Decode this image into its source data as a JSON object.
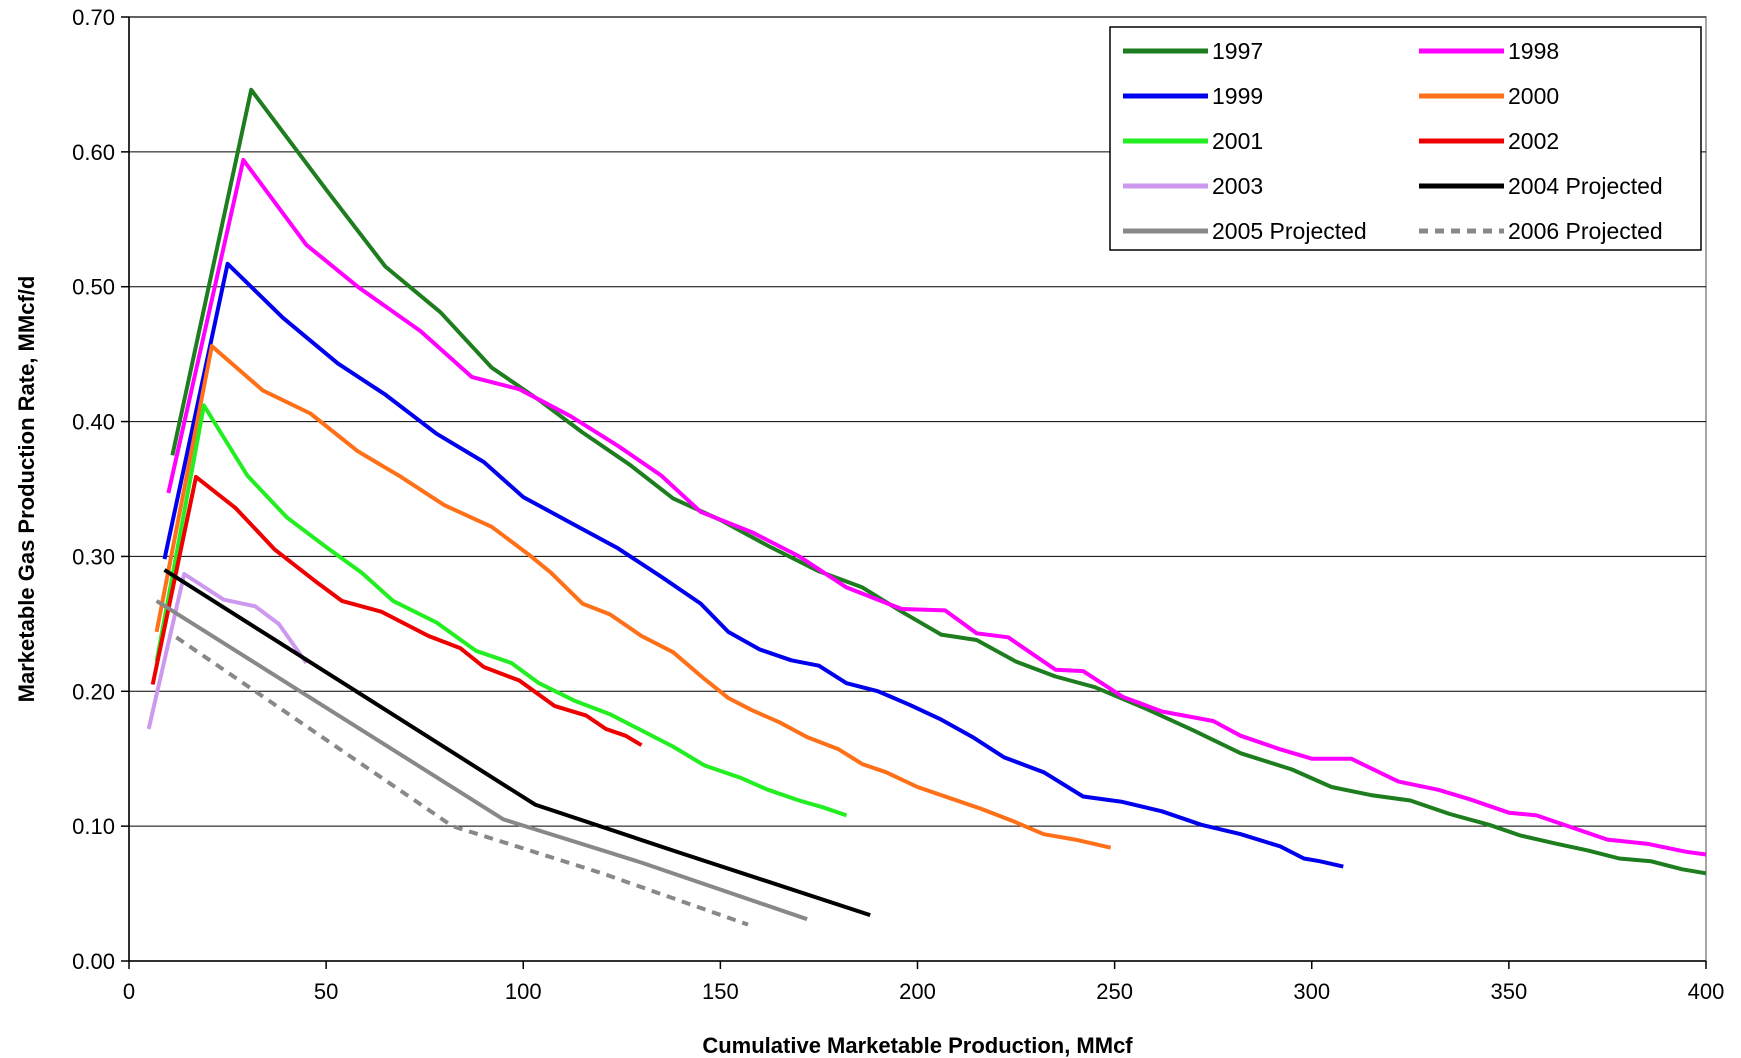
{
  "chart_data": {
    "type": "line",
    "title": "",
    "xlabel": "Cumulative Marketable Production, MMcf",
    "ylabel": "Marketable Gas Production Rate, MMcf/d",
    "xlim": [
      0,
      400
    ],
    "ylim": [
      0,
      0.7
    ],
    "x_ticks": [
      0,
      50,
      100,
      150,
      200,
      250,
      300,
      350,
      400
    ],
    "x_tick_labels": [
      "0",
      "50",
      "100",
      "150",
      "200",
      "250",
      "300",
      "350",
      "400"
    ],
    "y_ticks": [
      0,
      0.1,
      0.2,
      0.3,
      0.4,
      0.5,
      0.6,
      0.7
    ],
    "y_tick_labels": [
      "0.00",
      "0.10",
      "0.20",
      "0.30",
      "0.40",
      "0.50",
      "0.60",
      "0.70"
    ],
    "grid": "horizontal",
    "legend_position": "top-right",
    "series": [
      {
        "name": "1997",
        "color": "#1e7d1e",
        "dash": "solid",
        "points": [
          [
            11,
            0.375
          ],
          [
            31,
            0.646
          ],
          [
            50,
            0.572
          ],
          [
            65,
            0.515
          ],
          [
            79,
            0.481
          ],
          [
            92,
            0.44
          ],
          [
            104,
            0.416
          ],
          [
            115,
            0.392
          ],
          [
            127,
            0.368
          ],
          [
            138,
            0.343
          ],
          [
            150,
            0.327
          ],
          [
            162,
            0.308
          ],
          [
            175,
            0.289
          ],
          [
            186,
            0.277
          ],
          [
            196,
            0.259
          ],
          [
            206,
            0.242
          ],
          [
            215,
            0.238
          ],
          [
            225,
            0.222
          ],
          [
            235,
            0.211
          ],
          [
            245,
            0.203
          ],
          [
            258,
            0.187
          ],
          [
            270,
            0.171
          ],
          [
            282,
            0.154
          ],
          [
            295,
            0.142
          ],
          [
            305,
            0.129
          ],
          [
            315,
            0.123
          ],
          [
            325,
            0.119
          ],
          [
            335,
            0.109
          ],
          [
            345,
            0.101
          ],
          [
            353,
            0.093
          ],
          [
            362,
            0.087
          ],
          [
            370,
            0.082
          ],
          [
            378,
            0.076
          ],
          [
            386,
            0.074
          ],
          [
            394,
            0.068
          ],
          [
            400,
            0.065
          ]
        ]
      },
      {
        "name": "1998",
        "color": "#ff00ff",
        "dash": "solid",
        "points": [
          [
            10,
            0.347
          ],
          [
            29,
            0.594
          ],
          [
            45,
            0.531
          ],
          [
            58,
            0.5
          ],
          [
            74,
            0.467
          ],
          [
            87,
            0.433
          ],
          [
            99,
            0.424
          ],
          [
            112,
            0.404
          ],
          [
            124,
            0.382
          ],
          [
            135,
            0.36
          ],
          [
            145,
            0.333
          ],
          [
            158,
            0.318
          ],
          [
            170,
            0.3
          ],
          [
            182,
            0.277
          ],
          [
            196,
            0.261
          ],
          [
            207,
            0.26
          ],
          [
            215,
            0.243
          ],
          [
            223,
            0.24
          ],
          [
            235,
            0.216
          ],
          [
            242,
            0.215
          ],
          [
            252,
            0.196
          ],
          [
            262,
            0.185
          ],
          [
            275,
            0.178
          ],
          [
            282,
            0.167
          ],
          [
            292,
            0.157
          ],
          [
            300,
            0.15
          ],
          [
            310,
            0.15
          ],
          [
            322,
            0.133
          ],
          [
            332,
            0.127
          ],
          [
            340,
            0.12
          ],
          [
            350,
            0.11
          ],
          [
            357,
            0.108
          ],
          [
            365,
            0.1
          ],
          [
            375,
            0.09
          ],
          [
            385,
            0.087
          ],
          [
            395,
            0.081
          ],
          [
            400,
            0.079
          ]
        ]
      },
      {
        "name": "1999",
        "color": "#0000ee",
        "dash": "solid",
        "points": [
          [
            9,
            0.298
          ],
          [
            25,
            0.517
          ],
          [
            39,
            0.477
          ],
          [
            53,
            0.443
          ],
          [
            65,
            0.42
          ],
          [
            78,
            0.391
          ],
          [
            90,
            0.37
          ],
          [
            100,
            0.344
          ],
          [
            112,
            0.325
          ],
          [
            124,
            0.306
          ],
          [
            135,
            0.285
          ],
          [
            145,
            0.265
          ],
          [
            152,
            0.244
          ],
          [
            160,
            0.231
          ],
          [
            168,
            0.223
          ],
          [
            175,
            0.219
          ],
          [
            182,
            0.206
          ],
          [
            190,
            0.2
          ],
          [
            198,
            0.19
          ],
          [
            206,
            0.179
          ],
          [
            214,
            0.166
          ],
          [
            222,
            0.151
          ],
          [
            232,
            0.14
          ],
          [
            242,
            0.122
          ],
          [
            252,
            0.118
          ],
          [
            262,
            0.111
          ],
          [
            272,
            0.101
          ],
          [
            282,
            0.094
          ],
          [
            292,
            0.085
          ],
          [
            298,
            0.076
          ],
          [
            302,
            0.074
          ],
          [
            308,
            0.07
          ]
        ]
      },
      {
        "name": "2000",
        "color": "#ff7019",
        "dash": "solid",
        "points": [
          [
            7,
            0.244
          ],
          [
            21,
            0.456
          ],
          [
            34,
            0.423
          ],
          [
            46,
            0.406
          ],
          [
            58,
            0.378
          ],
          [
            69,
            0.359
          ],
          [
            80,
            0.338
          ],
          [
            92,
            0.322
          ],
          [
            102,
            0.3
          ],
          [
            107,
            0.288
          ],
          [
            115,
            0.265
          ],
          [
            122,
            0.257
          ],
          [
            130,
            0.241
          ],
          [
            138,
            0.229
          ],
          [
            146,
            0.209
          ],
          [
            152,
            0.195
          ],
          [
            158,
            0.186
          ],
          [
            165,
            0.177
          ],
          [
            172,
            0.166
          ],
          [
            180,
            0.157
          ],
          [
            186,
            0.146
          ],
          [
            192,
            0.14
          ],
          [
            200,
            0.129
          ],
          [
            208,
            0.121
          ],
          [
            216,
            0.113
          ],
          [
            224,
            0.104
          ],
          [
            232,
            0.094
          ],
          [
            240,
            0.09
          ],
          [
            249,
            0.084
          ]
        ]
      },
      {
        "name": "2001",
        "color": "#22ee22",
        "dash": "solid",
        "points": [
          [
            7,
            0.222
          ],
          [
            19,
            0.412
          ],
          [
            30,
            0.36
          ],
          [
            40,
            0.329
          ],
          [
            50,
            0.307
          ],
          [
            59,
            0.288
          ],
          [
            67,
            0.267
          ],
          [
            78,
            0.251
          ],
          [
            88,
            0.23
          ],
          [
            97,
            0.221
          ],
          [
            104,
            0.206
          ],
          [
            113,
            0.193
          ],
          [
            122,
            0.183
          ],
          [
            130,
            0.171
          ],
          [
            138,
            0.159
          ],
          [
            146,
            0.145
          ],
          [
            155,
            0.136
          ],
          [
            162,
            0.127
          ],
          [
            170,
            0.119
          ],
          [
            176,
            0.114
          ],
          [
            182,
            0.108
          ]
        ]
      },
      {
        "name": "2002",
        "color": "#ee0000",
        "dash": "solid",
        "points": [
          [
            6,
            0.205
          ],
          [
            17,
            0.359
          ],
          [
            27,
            0.336
          ],
          [
            37,
            0.305
          ],
          [
            48,
            0.28
          ],
          [
            54,
            0.267
          ],
          [
            64,
            0.259
          ],
          [
            76,
            0.241
          ],
          [
            84,
            0.232
          ],
          [
            90,
            0.218
          ],
          [
            99,
            0.208
          ],
          [
            108,
            0.189
          ],
          [
            116,
            0.182
          ],
          [
            121,
            0.172
          ],
          [
            126,
            0.167
          ],
          [
            130,
            0.16
          ]
        ]
      },
      {
        "name": "2003",
        "color": "#cc99ee",
        "dash": "solid",
        "points": [
          [
            5,
            0.172
          ],
          [
            14,
            0.287
          ],
          [
            24,
            0.268
          ],
          [
            32,
            0.263
          ],
          [
            38,
            0.25
          ],
          [
            45,
            0.221
          ]
        ]
      },
      {
        "name": "2004 Projected",
        "color": "#000000",
        "dash": "solid",
        "points": [
          [
            9,
            0.29
          ],
          [
            103,
            0.116
          ],
          [
            140,
            0.08
          ],
          [
            188,
            0.034
          ]
        ]
      },
      {
        "name": "2005 Projected",
        "color": "#888888",
        "dash": "solid",
        "points": [
          [
            7,
            0.267
          ],
          [
            95,
            0.105
          ],
          [
            130,
            0.073
          ],
          [
            172,
            0.031
          ]
        ]
      },
      {
        "name": "2006 Projected",
        "color": "#888888",
        "dash": "dashed",
        "points": [
          [
            12,
            0.24
          ],
          [
            82,
            0.1
          ],
          [
            120,
            0.065
          ],
          [
            157,
            0.027
          ]
        ]
      }
    ]
  }
}
